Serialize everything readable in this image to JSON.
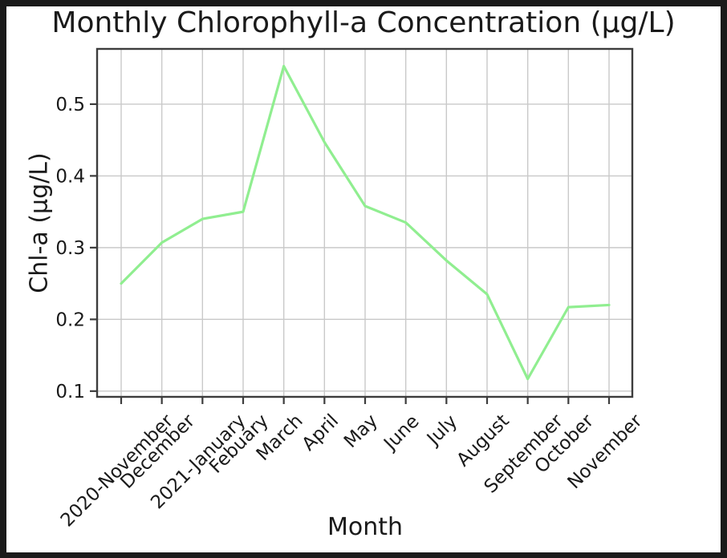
{
  "figure": {
    "background": "#ffffff",
    "frame_border_color": "#1a1a1a"
  },
  "chart_data": {
    "type": "line",
    "title": "Monthly Chlorophyll-a Concentration (μg/L)",
    "xlabel": "Month",
    "ylabel": "Chl-a (μg/L)",
    "categories": [
      "2020-November",
      "December",
      "2021-January",
      "Febuary",
      "March",
      "April",
      "May",
      "June",
      "July",
      "August",
      "September",
      "October",
      "November"
    ],
    "values": [
      0.25,
      0.307,
      0.34,
      0.35,
      0.553,
      0.447,
      0.358,
      0.335,
      0.282,
      0.235,
      0.117,
      0.217,
      0.22
    ],
    "yticks": [
      0.1,
      0.2,
      0.3,
      0.4,
      0.5
    ],
    "ylim": [
      0.092,
      0.577
    ],
    "grid": true,
    "legend": "none",
    "line_color": "#90ee90",
    "grid_color": "#c9c9c9",
    "axis_color": "#3d3d3d",
    "text_color": "#1a1a1a"
  }
}
